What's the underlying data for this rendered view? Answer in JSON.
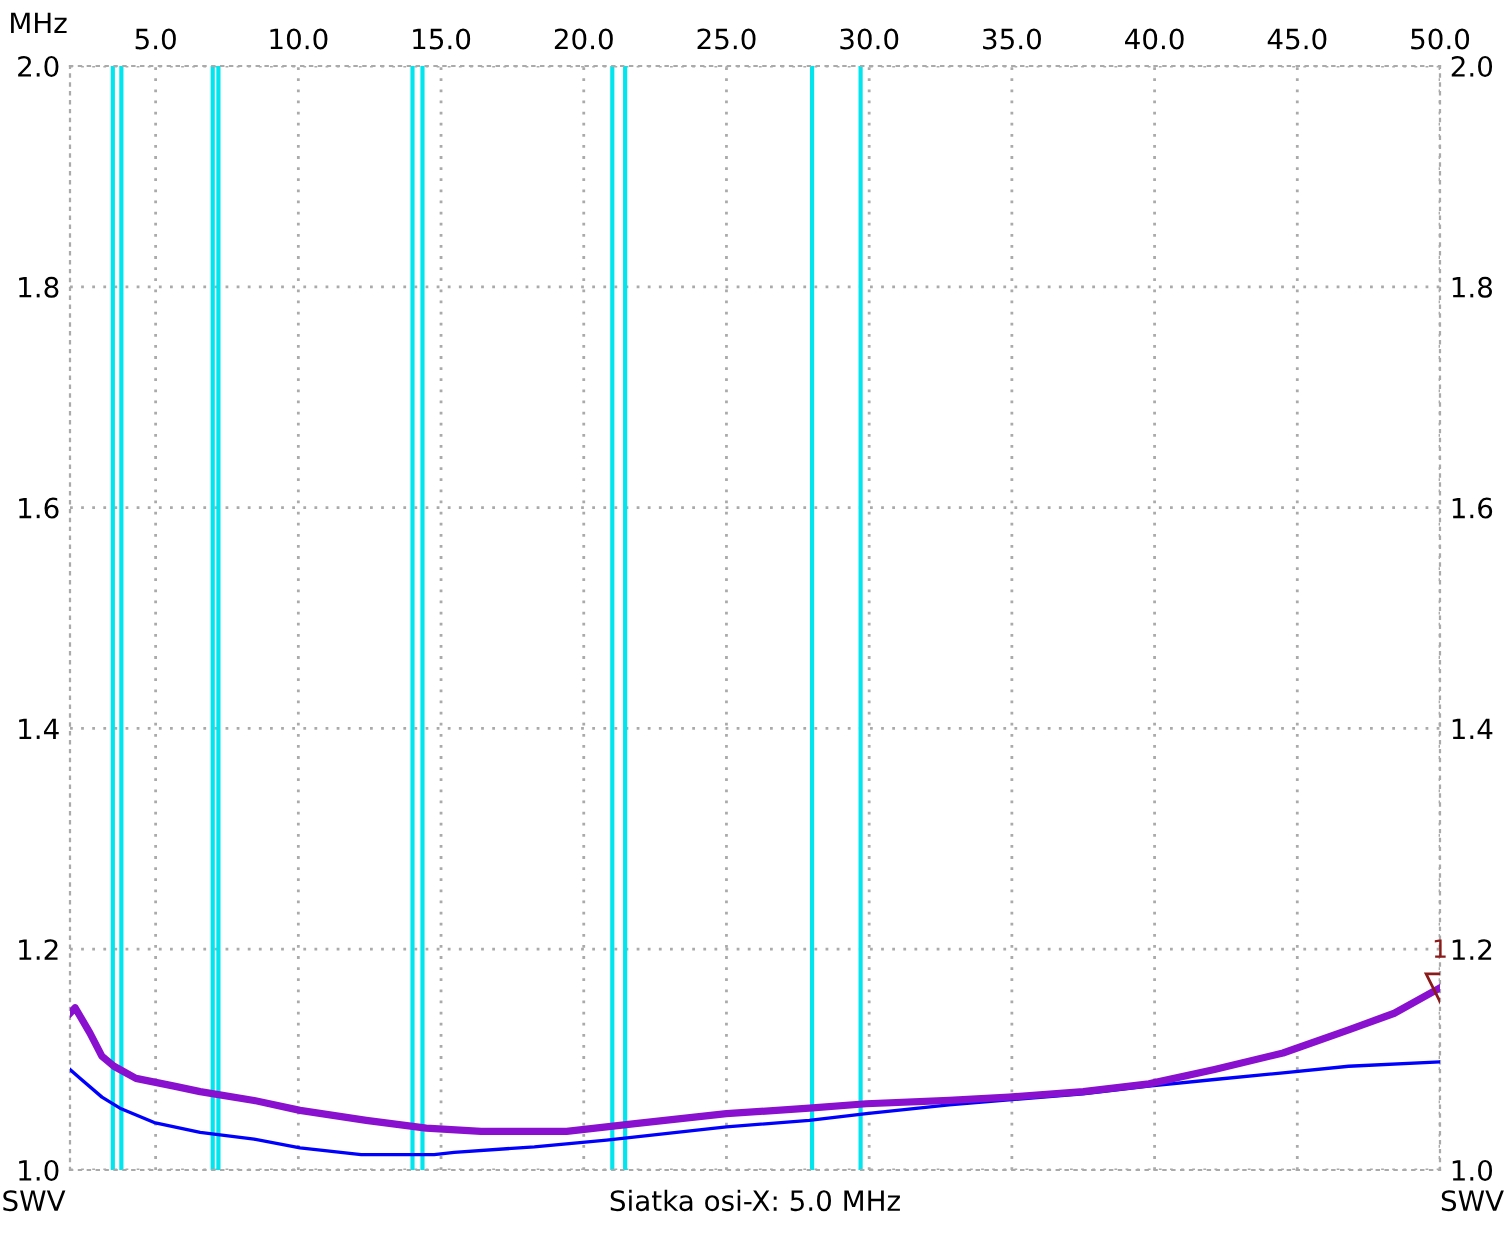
{
  "chart_data": {
    "type": "line",
    "xlabel": "MHz",
    "ylabel": "SWV",
    "y2label": "SWV",
    "annotations": [
      "Siatka osi-X: 5.0 MHz",
      {
        "text": "1",
        "x": 50,
        "y": 1.165
      }
    ],
    "xlim": [
      2,
      50
    ],
    "xticks": [
      {
        "value": 5,
        "label": "5.0"
      },
      {
        "value": 10,
        "label": "10.0"
      },
      {
        "value": 15,
        "label": "15.0"
      },
      {
        "value": 20,
        "label": "20.0"
      },
      {
        "value": 25,
        "label": "25.0"
      },
      {
        "value": 30,
        "label": "30.0"
      },
      {
        "value": 35,
        "label": "35.0"
      },
      {
        "value": 40,
        "label": "40.0"
      },
      {
        "value": 45,
        "label": "45.0"
      },
      {
        "value": 50,
        "label": "50.0"
      }
    ],
    "ylim": [
      1,
      2
    ],
    "yticks": [
      {
        "value": 1,
        "label": "1.0"
      },
      {
        "value": 1.2,
        "label": "1.2"
      },
      {
        "value": 1.4,
        "label": "1.4"
      },
      {
        "value": 1.6,
        "label": "1.6"
      },
      {
        "value": 1.8,
        "label": "1.8"
      },
      {
        "value": 2,
        "label": "2.0"
      }
    ],
    "y2lim": [
      1,
      2
    ],
    "y2ticks": [
      {
        "value": 1,
        "label": "1.0"
      },
      {
        "value": 1.2,
        "label": "1.2"
      },
      {
        "value": 1.4,
        "label": "1.4"
      },
      {
        "value": 1.6,
        "label": "1.6"
      },
      {
        "value": 1.8,
        "label": "1.8"
      },
      {
        "value": 2,
        "label": "2.0"
      }
    ],
    "grid": true,
    "legend": false,
    "marker": "none",
    "line_style": "solid",
    "ref_lines": [
      {
        "axis": "x",
        "value": 3.5,
        "color": "#00e5ee"
      },
      {
        "axis": "x",
        "value": 3.8,
        "color": "#00e5ee"
      },
      {
        "axis": "x",
        "value": 7.0,
        "color": "#00e5ee"
      },
      {
        "axis": "x",
        "value": 7.2,
        "color": "#00e5ee"
      },
      {
        "axis": "x",
        "value": 14.0,
        "color": "#00e5ee"
      },
      {
        "axis": "x",
        "value": 14.35,
        "color": "#00e5ee"
      },
      {
        "axis": "x",
        "value": 21.0,
        "color": "#00e5ee"
      },
      {
        "axis": "x",
        "value": 21.45,
        "color": "#00e5ee"
      },
      {
        "axis": "x",
        "value": 28.0,
        "color": "#00e5ee"
      },
      {
        "axis": "x",
        "value": 29.7,
        "color": "#00e5ee"
      }
    ],
    "series": [
      {
        "color": "#8a10d0",
        "x": [
          2.0,
          2.18,
          2.7,
          3.12,
          3.54,
          4.31,
          5.65,
          6.56,
          8.45,
          10.06,
          12.38,
          14.48,
          16.4,
          19.4,
          21.8,
          25.0,
          27.9,
          29.9,
          32.8,
          34.9,
          37.5,
          39.8,
          42.1,
          44.5,
          46.8,
          48.4,
          50.0
        ],
        "values": [
          1.142,
          1.147,
          1.124,
          1.103,
          1.094,
          1.083,
          1.076,
          1.071,
          1.063,
          1.054,
          1.045,
          1.038,
          1.035,
          1.035,
          1.042,
          1.051,
          1.056,
          1.06,
          1.063,
          1.066,
          1.071,
          1.078,
          1.091,
          1.106,
          1.127,
          1.142,
          1.165
        ]
      },
      {
        "color": "#0000ff",
        "x": [
          2.0,
          2.35,
          3.12,
          3.75,
          4.95,
          6.56,
          8.45,
          10.06,
          12.2,
          14.76,
          15.46,
          18.27,
          20.8,
          25.0,
          27.9,
          29.9,
          32.8,
          37.5,
          39.8,
          42.1,
          44.5,
          46.8,
          50.0
        ],
        "values": [
          1.091,
          1.083,
          1.066,
          1.056,
          1.043,
          1.034,
          1.028,
          1.02,
          1.014,
          1.014,
          1.016,
          1.021,
          1.027,
          1.039,
          1.045,
          1.051,
          1.059,
          1.069,
          1.076,
          1.082,
          1.088,
          1.094,
          1.098
        ]
      }
    ]
  }
}
